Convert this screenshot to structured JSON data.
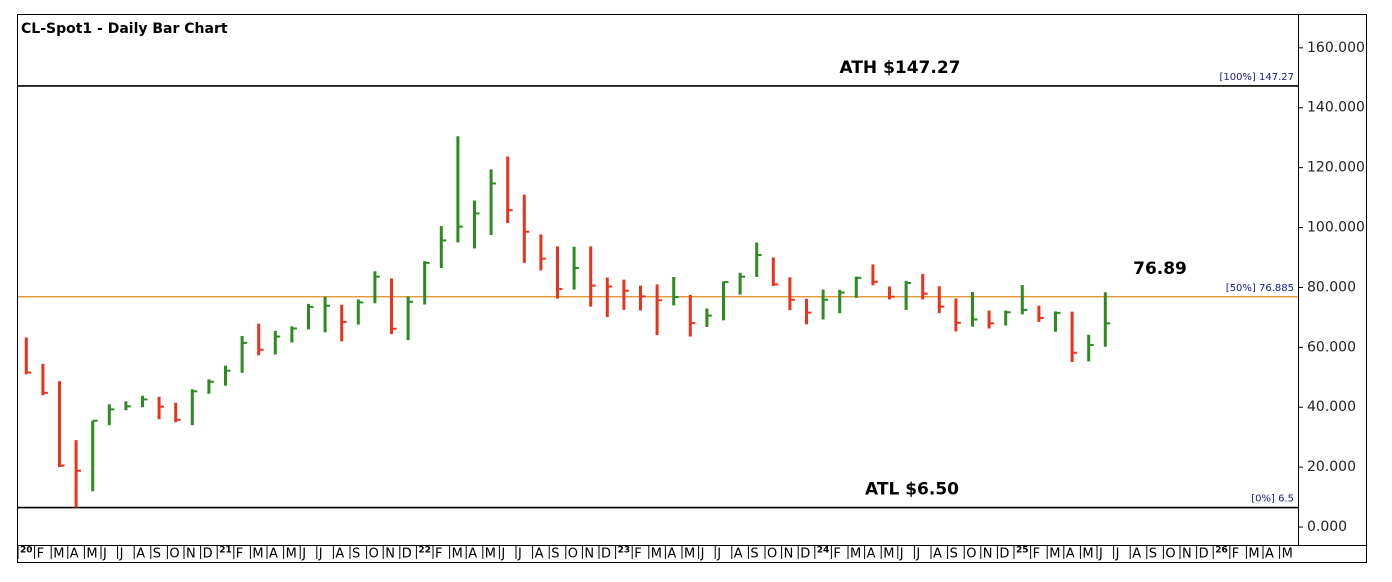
{
  "chart_data": {
    "type": "range-bar",
    "title": "CL-Spot1 - Daily Bar Chart",
    "categories": [
      "20",
      "F",
      "M",
      "A",
      "M",
      "J",
      "J",
      "A",
      "S",
      "O",
      "N",
      "D",
      "21",
      "F",
      "M",
      "A",
      "M",
      "J",
      "J",
      "A",
      "S",
      "O",
      "N",
      "D",
      "22",
      "F",
      "M",
      "A",
      "M",
      "J",
      "J",
      "A",
      "S",
      "O",
      "N",
      "D",
      "23",
      "F",
      "M",
      "A",
      "M",
      "J",
      "J",
      "A",
      "S",
      "O",
      "N",
      "D",
      "24",
      "F",
      "M",
      "A",
      "M",
      "J",
      "J",
      "A",
      "S",
      "O",
      "N",
      "D",
      "25",
      "F",
      "M",
      "A",
      "M",
      "J",
      "J",
      "A",
      "S",
      "O",
      "N",
      "D",
      "26",
      "F",
      "M",
      "A",
      "M"
    ],
    "series": [
      {
        "name": "High",
        "values": [
          63.3,
          54.5,
          48.7,
          29,
          35.5,
          41,
          42,
          43.8,
          43.5,
          41.5,
          46,
          49.3,
          53.9,
          63.8,
          67.9,
          65.5,
          67,
          74.5,
          76.9,
          74.2,
          76,
          85.4,
          83,
          77,
          88.8,
          100.5,
          130.5,
          109,
          119.4,
          123.7,
          111,
          97.7,
          93.7,
          93.6,
          93.7,
          83.3,
          82.6,
          80.6,
          81,
          83.5,
          77.5,
          73,
          82,
          84.9,
          95,
          90,
          83.4,
          76.2,
          79.3,
          79.2,
          83.6,
          87.7,
          80.3,
          82.2,
          84.5,
          80.4,
          76.3,
          78.5,
          72.3,
          72.3,
          80.8,
          73.9,
          72,
          71.9,
          64.2,
          78.4,
          null,
          null,
          null,
          null,
          null,
          null,
          null,
          null,
          null,
          null,
          null
        ]
      },
      {
        "name": "Low",
        "values": [
          51,
          44,
          20,
          6.5,
          12,
          34,
          39,
          40,
          36,
          35,
          34,
          44.5,
          47.2,
          51.5,
          57.3,
          57.6,
          61.6,
          66,
          65,
          62,
          67.6,
          74.7,
          64.4,
          62.4,
          74.3,
          86.5,
          95,
          93,
          97.5,
          101.5,
          88.2,
          85.7,
          76.3,
          79.3,
          73.6,
          70.1,
          72.5,
          72.3,
          64.1,
          74,
          63.6,
          66.8,
          69,
          77.6,
          83.5,
          80.5,
          72.4,
          67.7,
          69.3,
          71.4,
          76.5,
          80.7,
          76,
          72.5,
          76,
          71.4,
          65.3,
          66.9,
          66.3,
          67.3,
          71,
          68.5,
          65.2,
          55.1,
          55.3,
          60.2,
          null,
          null,
          null,
          null,
          null,
          null,
          null,
          null,
          null,
          null,
          null
        ]
      },
      {
        "name": "Close",
        "values": [
          51.6,
          44.8,
          20.5,
          18.8,
          35.5,
          39.3,
          40.3,
          42.6,
          40.2,
          35.8,
          45.3,
          48.5,
          52.2,
          61.5,
          59.2,
          63.6,
          66.3,
          73.5,
          73.9,
          68.5,
          75,
          83.6,
          66.2,
          75.2,
          88.2,
          95.7,
          100.3,
          104.7,
          114.7,
          105.8,
          98.6,
          89.6,
          79.5,
          86.5,
          80.6,
          80.3,
          78.9,
          77,
          75.7,
          76.8,
          68.1,
          70.6,
          81.8,
          83.6,
          90.8,
          81,
          75.9,
          71.6,
          75.9,
          78.3,
          83.2,
          81.9,
          76.9,
          81.5,
          77.9,
          73.6,
          68.2,
          69.3,
          68,
          71.7,
          72.5,
          69.8,
          71.5,
          58.2,
          60.8,
          68,
          null,
          null,
          null,
          null,
          null,
          null,
          null,
          null,
          null,
          null,
          null
        ]
      }
    ],
    "up_color": "#2e8b22",
    "down_color": "#e8341c",
    "ylim": [
      -6,
      171.3
    ],
    "yticks": [
      {
        "value": 0,
        "label": "0.000"
      },
      {
        "value": 20,
        "label": "20.000"
      },
      {
        "value": 40,
        "label": "40.000"
      },
      {
        "value": 60,
        "label": "60.000"
      },
      {
        "value": 80,
        "label": "80.000"
      },
      {
        "value": 100,
        "label": "100.000"
      },
      {
        "value": 120,
        "label": "120.000"
      },
      {
        "value": 140,
        "label": "140.000"
      },
      {
        "value": 160,
        "label": "160.000"
      }
    ],
    "levels": [
      {
        "value": 147.27,
        "label": "ATH $147.27",
        "tag": "[100%] 147.27",
        "color": "#000000"
      },
      {
        "value": 76.885,
        "label": "76.89",
        "tag": "[50%] 76.885",
        "color": "#e08a1e"
      },
      {
        "value": 6.5,
        "label": "ATL $6.50",
        "tag": "[0%] 6.5",
        "color": "#000000"
      }
    ]
  }
}
